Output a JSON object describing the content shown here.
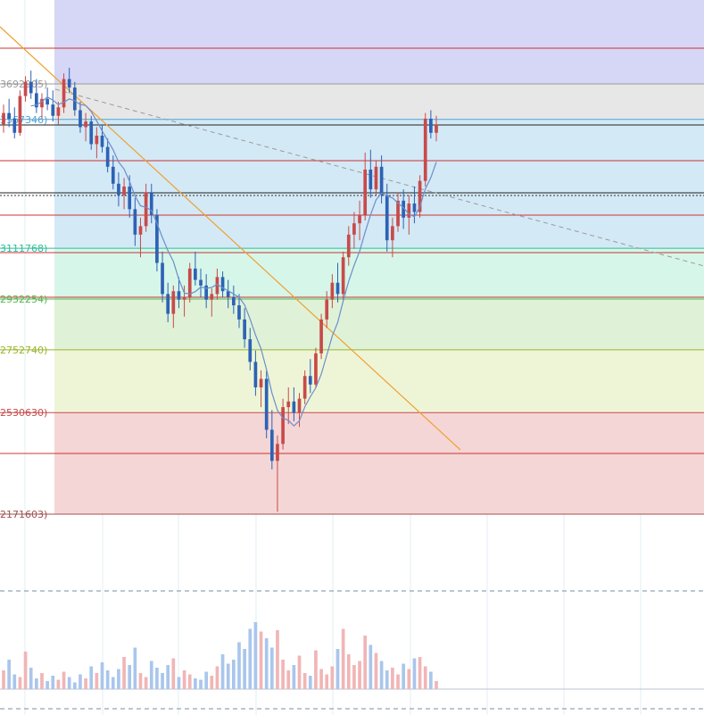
{
  "chart_data": {
    "type": "candlestick",
    "title": "",
    "xlabel": "",
    "ylabel": "",
    "y_scale": "linear",
    "grid": true,
    "ylim": [
      0.2171603,
      0.385
    ],
    "fib_levels": [
      {
        "label": "3692905)",
        "value": 0.3692905,
        "color": "#9a9a9a"
      },
      {
        "label": "3567346)",
        "value": 0.3567346,
        "color": "#4ea3d3"
      },
      {
        "label": "3111768)",
        "value": 0.3111768,
        "color": "#2bbf9b"
      },
      {
        "label": "2932254)",
        "value": 0.2932254,
        "color": "#52b852"
      },
      {
        "label": "2752740)",
        "value": 0.275274,
        "color": "#9ab52a"
      },
      {
        "label": "2530630)",
        "value": 0.253063,
        "color": "#c64b4b"
      },
      {
        "label": "2171603)",
        "value": 0.2171603,
        "color": "#a05050"
      }
    ],
    "band_colors": [
      "#d4d4f5",
      "#e6e6e6",
      "#d1e8f6",
      "#d4f5e8",
      "#ddf1d6",
      "#edf4d5",
      "#f4d4d4"
    ],
    "candles": [
      [
        0.355,
        0.362,
        0.352,
        0.359
      ],
      [
        0.359,
        0.364,
        0.354,
        0.357
      ],
      [
        0.357,
        0.361,
        0.35,
        0.352
      ],
      [
        0.352,
        0.367,
        0.351,
        0.365
      ],
      [
        0.365,
        0.372,
        0.363,
        0.37
      ],
      [
        0.37,
        0.374,
        0.364,
        0.366
      ],
      [
        0.366,
        0.371,
        0.359,
        0.361
      ],
      [
        0.361,
        0.366,
        0.357,
        0.364
      ],
      [
        0.364,
        0.368,
        0.36,
        0.362
      ],
      [
        0.362,
        0.367,
        0.356,
        0.358
      ],
      [
        0.358,
        0.363,
        0.355,
        0.361
      ],
      [
        0.361,
        0.373,
        0.359,
        0.371
      ],
      [
        0.371,
        0.375,
        0.366,
        0.368
      ],
      [
        0.368,
        0.37,
        0.358,
        0.36
      ],
      [
        0.36,
        0.363,
        0.352,
        0.354
      ],
      [
        0.354,
        0.359,
        0.349,
        0.356
      ],
      [
        0.356,
        0.358,
        0.346,
        0.348
      ],
      [
        0.348,
        0.354,
        0.343,
        0.351
      ],
      [
        0.351,
        0.355,
        0.345,
        0.347
      ],
      [
        0.347,
        0.35,
        0.338,
        0.34
      ],
      [
        0.34,
        0.344,
        0.332,
        0.334
      ],
      [
        0.334,
        0.338,
        0.326,
        0.33
      ],
      [
        0.33,
        0.336,
        0.325,
        0.333
      ],
      [
        0.333,
        0.337,
        0.322,
        0.325
      ],
      [
        0.325,
        0.329,
        0.312,
        0.316
      ],
      [
        0.316,
        0.322,
        0.308,
        0.319
      ],
      [
        0.319,
        0.334,
        0.317,
        0.331
      ],
      [
        0.331,
        0.334,
        0.32,
        0.323
      ],
      [
        0.323,
        0.325,
        0.303,
        0.306
      ],
      [
        0.306,
        0.31,
        0.292,
        0.295
      ],
      [
        0.295,
        0.299,
        0.285,
        0.288
      ],
      [
        0.288,
        0.298,
        0.283,
        0.296
      ],
      [
        0.296,
        0.301,
        0.29,
        0.293
      ],
      [
        0.293,
        0.298,
        0.287,
        0.294
      ],
      [
        0.294,
        0.306,
        0.292,
        0.304
      ],
      [
        0.304,
        0.31,
        0.298,
        0.3
      ],
      [
        0.3,
        0.304,
        0.294,
        0.298
      ],
      [
        0.298,
        0.302,
        0.29,
        0.293
      ],
      [
        0.293,
        0.297,
        0.287,
        0.295
      ],
      [
        0.295,
        0.304,
        0.293,
        0.301
      ],
      [
        0.301,
        0.303,
        0.294,
        0.296
      ],
      [
        0.296,
        0.3,
        0.29,
        0.294
      ],
      [
        0.294,
        0.298,
        0.288,
        0.291
      ],
      [
        0.291,
        0.295,
        0.283,
        0.286
      ],
      [
        0.286,
        0.29,
        0.276,
        0.279
      ],
      [
        0.279,
        0.283,
        0.268,
        0.271
      ],
      [
        0.271,
        0.275,
        0.259,
        0.262
      ],
      [
        0.262,
        0.268,
        0.255,
        0.265
      ],
      [
        0.265,
        0.268,
        0.244,
        0.247
      ],
      [
        0.247,
        0.254,
        0.233,
        0.236
      ],
      [
        0.236,
        0.245,
        0.218,
        0.242
      ],
      [
        0.242,
        0.258,
        0.24,
        0.255
      ],
      [
        0.255,
        0.262,
        0.249,
        0.257
      ],
      [
        0.257,
        0.262,
        0.25,
        0.253
      ],
      [
        0.253,
        0.26,
        0.248,
        0.258
      ],
      [
        0.258,
        0.268,
        0.256,
        0.266
      ],
      [
        0.266,
        0.272,
        0.26,
        0.263
      ],
      [
        0.263,
        0.276,
        0.262,
        0.274
      ],
      [
        0.274,
        0.288,
        0.272,
        0.286
      ],
      [
        0.286,
        0.296,
        0.283,
        0.293
      ],
      [
        0.293,
        0.302,
        0.29,
        0.299
      ],
      [
        0.299,
        0.306,
        0.292,
        0.295
      ],
      [
        0.295,
        0.31,
        0.293,
        0.308
      ],
      [
        0.308,
        0.319,
        0.305,
        0.316
      ],
      [
        0.316,
        0.324,
        0.311,
        0.32
      ],
      [
        0.32,
        0.328,
        0.314,
        0.323
      ],
      [
        0.323,
        0.345,
        0.321,
        0.339
      ],
      [
        0.339,
        0.346,
        0.329,
        0.332
      ],
      [
        0.332,
        0.342,
        0.33,
        0.34
      ],
      [
        0.34,
        0.344,
        0.327,
        0.33
      ],
      [
        0.33,
        0.334,
        0.31,
        0.314
      ],
      [
        0.314,
        0.322,
        0.308,
        0.319
      ],
      [
        0.319,
        0.331,
        0.317,
        0.328
      ],
      [
        0.328,
        0.332,
        0.318,
        0.322
      ],
      [
        0.322,
        0.33,
        0.316,
        0.327
      ],
      [
        0.327,
        0.333,
        0.32,
        0.324
      ],
      [
        0.324,
        0.337,
        0.322,
        0.335
      ],
      [
        0.335,
        0.359,
        0.333,
        0.357
      ],
      [
        0.357,
        0.36,
        0.35,
        0.352
      ],
      [
        0.352,
        0.358,
        0.349,
        0.355
      ]
    ],
    "volumes": [
      14,
      22,
      11,
      9,
      28,
      16,
      8,
      12,
      6,
      10,
      7,
      13,
      9,
      5,
      11,
      8,
      17,
      12,
      20,
      14,
      9,
      15,
      24,
      18,
      31,
      12,
      9,
      21,
      16,
      12,
      18,
      23,
      9,
      14,
      11,
      8,
      7,
      13,
      10,
      17,
      26,
      19,
      22,
      35,
      30,
      45,
      50,
      43,
      38,
      31,
      44,
      22,
      14,
      18,
      25,
      12,
      10,
      29,
      15,
      11,
      17,
      30,
      45,
      26,
      18,
      21,
      40,
      33,
      27,
      21,
      14,
      16,
      11,
      19,
      15,
      23,
      24,
      17,
      13,
      6
    ],
    "overlays": [
      {
        "name": "orange_trendline",
        "color": "#f0a030"
      },
      {
        "name": "gray_dashed_trendline",
        "color": "#9a9a9a"
      },
      {
        "name": "moving_average",
        "color": "#6b8fc9"
      }
    ]
  }
}
